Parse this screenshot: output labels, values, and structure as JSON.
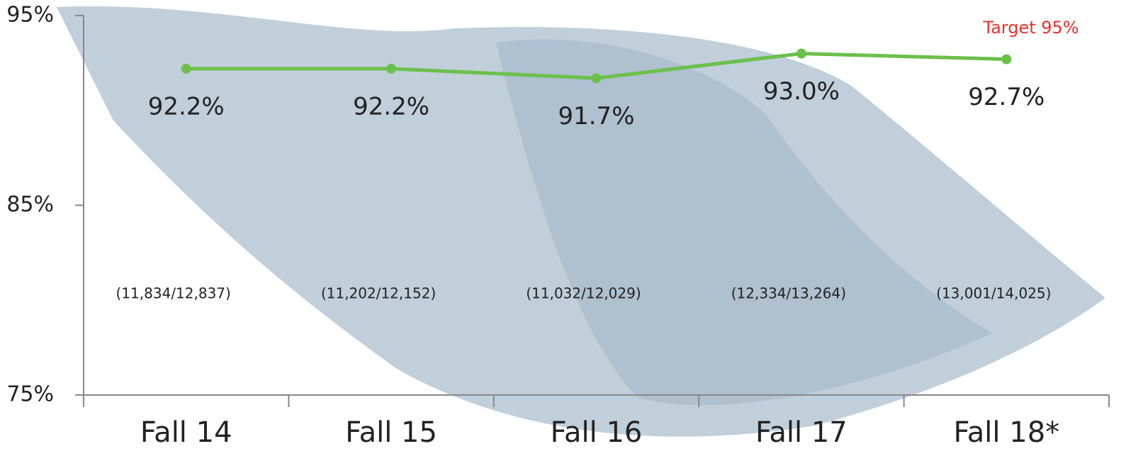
{
  "chart_data": {
    "type": "line",
    "categories": [
      "Fall 14",
      "Fall 15",
      "Fall 16",
      "Fall 17",
      "Fall 18*"
    ],
    "values": [
      92.2,
      92.2,
      91.7,
      93.0,
      92.7
    ],
    "value_labels": [
      "92.2%",
      "92.2%",
      "91.7%",
      "93.0%",
      "92.7%"
    ],
    "annotations": [
      "(11,834/12,837)",
      "(11,202/12,152)",
      "(11,032/12,029)",
      "(12,334/13,264)",
      "(13,001/14,025)"
    ],
    "target_label": "Target 95%",
    "color": "#6cc04a",
    "ylim": [
      75,
      95
    ],
    "yticks": [
      {
        "value": 75,
        "label": "75%"
      },
      {
        "value": 85,
        "label": "85%"
      },
      {
        "value": 95,
        "label": "95%"
      }
    ]
  }
}
